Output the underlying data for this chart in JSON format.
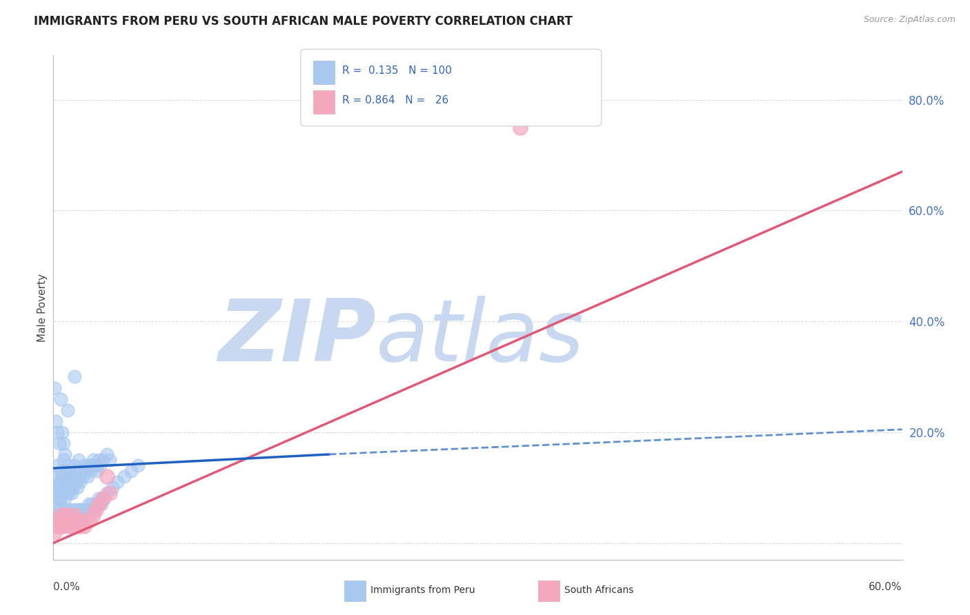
{
  "title": "IMMIGRANTS FROM PERU VS SOUTH AFRICAN MALE POVERTY CORRELATION CHART",
  "source": "Source: ZipAtlas.com",
  "ylabel": "Male Poverty",
  "yticks_right": [
    0.0,
    0.2,
    0.4,
    0.6,
    0.8
  ],
  "ytick_labels_right": [
    "",
    "20.0%",
    "40.0%",
    "60.0%",
    "80.0%"
  ],
  "xlim": [
    0.0,
    0.6
  ],
  "ylim": [
    -0.03,
    0.88
  ],
  "legend_line1": "R =  0.135   N = 100",
  "legend_line2": "R = 0.864   N =   26",
  "blue_color": "#A8C8F0",
  "pink_color": "#F4A8C0",
  "trend_blue_solid_color": "#2060C0",
  "trend_blue_dash_color": "#6090D0",
  "trend_pink_color": "#E05878",
  "watermark_zip": "ZIP",
  "watermark_atlas": "atlas",
  "watermark_color": "#C8D8F0",
  "grid_color": "#CCCCCC",
  "background_color": "#FFFFFF",
  "blue_points_x": [
    0.001,
    0.002,
    0.002,
    0.003,
    0.003,
    0.004,
    0.004,
    0.005,
    0.005,
    0.005,
    0.006,
    0.006,
    0.007,
    0.007,
    0.008,
    0.008,
    0.009,
    0.009,
    0.01,
    0.01,
    0.011,
    0.011,
    0.012,
    0.012,
    0.013,
    0.013,
    0.014,
    0.015,
    0.015,
    0.016,
    0.017,
    0.018,
    0.018,
    0.019,
    0.02,
    0.021,
    0.022,
    0.023,
    0.024,
    0.025,
    0.026,
    0.027,
    0.028,
    0.03,
    0.031,
    0.032,
    0.033,
    0.035,
    0.038,
    0.04,
    0.001,
    0.002,
    0.003,
    0.003,
    0.004,
    0.005,
    0.006,
    0.006,
    0.007,
    0.008,
    0.009,
    0.01,
    0.011,
    0.012,
    0.013,
    0.014,
    0.015,
    0.016,
    0.017,
    0.018,
    0.019,
    0.02,
    0.021,
    0.022,
    0.023,
    0.024,
    0.025,
    0.026,
    0.027,
    0.028,
    0.03,
    0.032,
    0.034,
    0.036,
    0.038,
    0.042,
    0.045,
    0.05,
    0.055,
    0.06,
    0.001,
    0.002,
    0.003,
    0.004,
    0.005,
    0.006,
    0.007,
    0.008,
    0.01,
    0.015
  ],
  "blue_points_y": [
    0.1,
    0.08,
    0.12,
    0.09,
    0.14,
    0.07,
    0.11,
    0.08,
    0.1,
    0.13,
    0.09,
    0.12,
    0.1,
    0.15,
    0.08,
    0.11,
    0.09,
    0.13,
    0.1,
    0.12,
    0.09,
    0.14,
    0.1,
    0.12,
    0.09,
    0.11,
    0.1,
    0.12,
    0.14,
    0.11,
    0.1,
    0.12,
    0.15,
    0.11,
    0.13,
    0.12,
    0.14,
    0.13,
    0.12,
    0.14,
    0.13,
    0.14,
    0.15,
    0.14,
    0.13,
    0.15,
    0.14,
    0.15,
    0.16,
    0.15,
    0.05,
    0.04,
    0.06,
    0.03,
    0.05,
    0.04,
    0.06,
    0.03,
    0.05,
    0.04,
    0.06,
    0.05,
    0.04,
    0.06,
    0.05,
    0.04,
    0.06,
    0.05,
    0.04,
    0.06,
    0.05,
    0.06,
    0.05,
    0.06,
    0.05,
    0.06,
    0.07,
    0.06,
    0.07,
    0.06,
    0.07,
    0.08,
    0.07,
    0.08,
    0.09,
    0.1,
    0.11,
    0.12,
    0.13,
    0.14,
    0.28,
    0.22,
    0.2,
    0.18,
    0.26,
    0.2,
    0.18,
    0.16,
    0.24,
    0.3
  ],
  "pink_points_x": [
    0.001,
    0.002,
    0.003,
    0.004,
    0.005,
    0.006,
    0.007,
    0.008,
    0.009,
    0.01,
    0.011,
    0.012,
    0.013,
    0.015,
    0.016,
    0.018,
    0.02,
    0.022,
    0.025,
    0.028,
    0.03,
    0.032,
    0.035,
    0.038,
    0.04,
    0.33
  ],
  "pink_points_y": [
    0.02,
    0.03,
    0.04,
    0.03,
    0.05,
    0.04,
    0.03,
    0.05,
    0.04,
    0.05,
    0.03,
    0.04,
    0.03,
    0.05,
    0.04,
    0.03,
    0.04,
    0.03,
    0.04,
    0.05,
    0.06,
    0.07,
    0.08,
    0.12,
    0.09,
    0.75
  ],
  "blue_solid_trend_x": [
    0.0,
    0.195
  ],
  "blue_solid_trend_y": [
    0.135,
    0.16
  ],
  "blue_dash_trend_x": [
    0.195,
    0.6
  ],
  "blue_dash_trend_y": [
    0.16,
    0.205
  ],
  "pink_trend_x": [
    0.0,
    0.6
  ],
  "pink_trend_y": [
    0.0,
    0.67
  ]
}
